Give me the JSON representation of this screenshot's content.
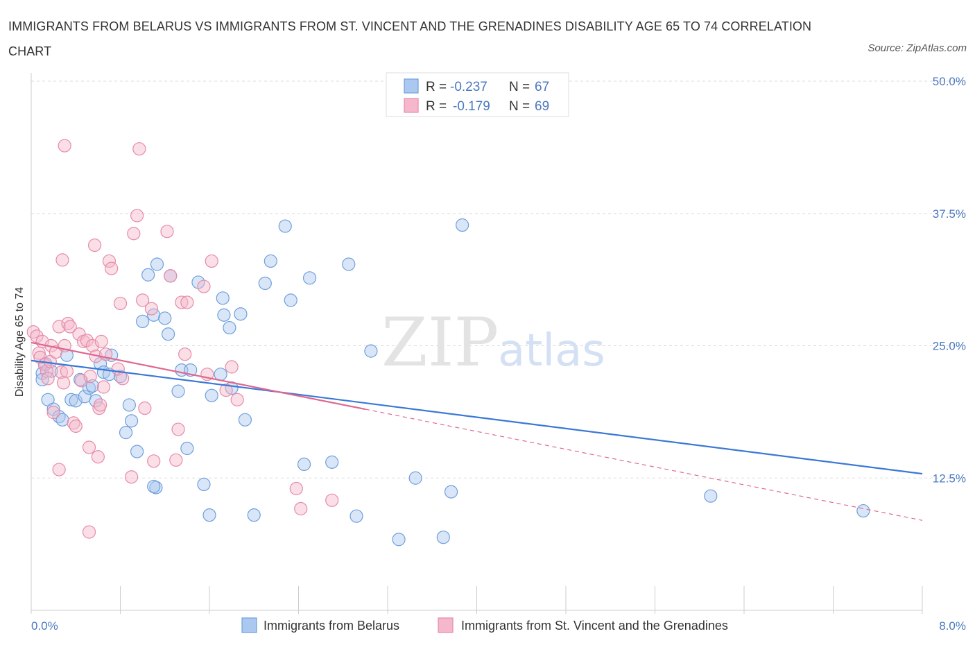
{
  "title": "IMMIGRANTS FROM BELARUS VS IMMIGRANTS FROM ST. VINCENT AND THE GRENADINES DISABILITY AGE 65 TO 74 CORRELATION CHART",
  "source": "Source: ZipAtlas.com",
  "watermark": {
    "zip": "ZIP",
    "atlas": "atlas"
  },
  "colors": {
    "blue_fill": "#aac8f0",
    "blue_stroke": "#6f9fdc",
    "blue_line": "#3a78d6",
    "pink_fill": "#f5b8ca",
    "pink_stroke": "#e88aa8",
    "pink_line": "#e0678f",
    "grid": "#dddddd",
    "axis_text": "#4a78c0"
  },
  "legend": {
    "rows": [
      {
        "r_label": "R =",
        "r_value": "-0.237",
        "n_label": "N =",
        "n_value": "67"
      },
      {
        "r_label": "R =",
        "r_value": "-0.179",
        "n_label": "N =",
        "n_value": "69"
      }
    ]
  },
  "chart_data": {
    "type": "scatter",
    "title": "IMMIGRANTS FROM BELARUS VS IMMIGRANTS FROM ST. VINCENT AND THE GRENADINES DISABILITY AGE 65 TO 74 CORRELATION CHART",
    "xlabel": "",
    "ylabel": "Disability Age 65 to 74",
    "xlim": [
      0.0,
      8.0
    ],
    "ylim": [
      0.0,
      50.0
    ],
    "x_ticks": [
      "0.0%",
      "8.0%"
    ],
    "y_ticks": [
      {
        "value": 12.5,
        "label": "12.5%"
      },
      {
        "value": 25.0,
        "label": "25.0%"
      },
      {
        "value": 37.5,
        "label": "37.5%"
      },
      {
        "value": 50.0,
        "label": "50.0%"
      }
    ],
    "grid": true,
    "legend_position": "bottom",
    "series": [
      {
        "name": "Immigrants from Belarus",
        "color": "#aac8f0",
        "trend": {
          "x": [
            0.0,
            8.0
          ],
          "y": [
            23.6,
            12.9
          ],
          "dashed_extension": false
        },
        "points": [
          [
            0.1,
            22.4
          ],
          [
            0.1,
            21.8
          ],
          [
            0.13,
            23.3
          ],
          [
            0.15,
            19.9
          ],
          [
            0.18,
            22.6
          ],
          [
            0.2,
            19.0
          ],
          [
            0.25,
            18.3
          ],
          [
            0.28,
            18.0
          ],
          [
            0.32,
            24.1
          ],
          [
            0.36,
            19.9
          ],
          [
            0.4,
            19.8
          ],
          [
            0.44,
            21.8
          ],
          [
            0.48,
            20.2
          ],
          [
            0.52,
            21.0
          ],
          [
            0.55,
            21.2
          ],
          [
            0.58,
            19.8
          ],
          [
            0.62,
            23.3
          ],
          [
            0.65,
            22.5
          ],
          [
            0.7,
            22.3
          ],
          [
            0.72,
            24.1
          ],
          [
            0.8,
            22.1
          ],
          [
            0.85,
            16.8
          ],
          [
            0.88,
            19.4
          ],
          [
            0.9,
            17.9
          ],
          [
            0.95,
            15.0
          ],
          [
            1.0,
            27.3
          ],
          [
            1.05,
            31.7
          ],
          [
            1.1,
            27.9
          ],
          [
            1.12,
            11.6
          ],
          [
            1.13,
            32.7
          ],
          [
            1.2,
            27.6
          ],
          [
            1.23,
            26.1
          ],
          [
            1.25,
            31.6
          ],
          [
            1.32,
            20.7
          ],
          [
            1.35,
            22.7
          ],
          [
            1.4,
            15.3
          ],
          [
            1.43,
            22.7
          ],
          [
            1.5,
            31.0
          ],
          [
            1.55,
            11.9
          ],
          [
            1.6,
            9.0
          ],
          [
            1.62,
            20.3
          ],
          [
            1.7,
            22.3
          ],
          [
            1.72,
            29.5
          ],
          [
            1.73,
            27.9
          ],
          [
            1.78,
            26.7
          ],
          [
            1.8,
            21.0
          ],
          [
            1.88,
            28.0
          ],
          [
            1.92,
            18.0
          ],
          [
            2.0,
            9.0
          ],
          [
            2.1,
            30.9
          ],
          [
            2.15,
            33.0
          ],
          [
            2.28,
            36.3
          ],
          [
            2.33,
            29.3
          ],
          [
            2.45,
            13.8
          ],
          [
            2.5,
            31.4
          ],
          [
            2.7,
            14.0
          ],
          [
            2.85,
            32.7
          ],
          [
            2.92,
            8.9
          ],
          [
            3.05,
            24.5
          ],
          [
            3.3,
            6.7
          ],
          [
            3.45,
            12.5
          ],
          [
            3.7,
            6.9
          ],
          [
            3.77,
            11.2
          ],
          [
            3.87,
            36.4
          ],
          [
            6.1,
            10.8
          ],
          [
            7.47,
            9.4
          ],
          [
            1.1,
            11.7
          ]
        ]
      },
      {
        "name": "Immigrants from St. Vincent and the Grenadines",
        "color": "#f5b8ca",
        "trend": {
          "x": [
            0.0,
            3.0
          ],
          "y": [
            25.3,
            19.0
          ],
          "dashed_extension": true,
          "dashed_to": [
            8.0,
            8.5
          ]
        },
        "points": [
          [
            0.02,
            26.3
          ],
          [
            0.05,
            25.9
          ],
          [
            0.07,
            24.3
          ],
          [
            0.08,
            23.9
          ],
          [
            0.1,
            25.4
          ],
          [
            0.12,
            23.2
          ],
          [
            0.14,
            22.6
          ],
          [
            0.15,
            21.9
          ],
          [
            0.17,
            23.5
          ],
          [
            0.18,
            25.0
          ],
          [
            0.2,
            18.7
          ],
          [
            0.22,
            24.4
          ],
          [
            0.25,
            26.8
          ],
          [
            0.27,
            22.5
          ],
          [
            0.29,
            21.5
          ],
          [
            0.3,
            25.0
          ],
          [
            0.32,
            22.6
          ],
          [
            0.33,
            27.1
          ],
          [
            0.35,
            26.8
          ],
          [
            0.38,
            17.7
          ],
          [
            0.4,
            17.4
          ],
          [
            0.43,
            26.1
          ],
          [
            0.45,
            21.7
          ],
          [
            0.47,
            25.4
          ],
          [
            0.5,
            25.5
          ],
          [
            0.52,
            15.4
          ],
          [
            0.53,
            22.1
          ],
          [
            0.55,
            25.0
          ],
          [
            0.57,
            34.5
          ],
          [
            0.58,
            24.0
          ],
          [
            0.6,
            14.5
          ],
          [
            0.61,
            19.1
          ],
          [
            0.62,
            19.4
          ],
          [
            0.63,
            25.4
          ],
          [
            0.65,
            21.1
          ],
          [
            0.67,
            24.2
          ],
          [
            0.7,
            33.0
          ],
          [
            0.72,
            32.3
          ],
          [
            0.78,
            22.8
          ],
          [
            0.8,
            29.0
          ],
          [
            0.82,
            21.9
          ],
          [
            0.9,
            12.6
          ],
          [
            0.92,
            35.6
          ],
          [
            0.95,
            37.3
          ],
          [
            1.0,
            29.3
          ],
          [
            1.02,
            19.1
          ],
          [
            1.08,
            28.5
          ],
          [
            1.1,
            14.1
          ],
          [
            1.22,
            35.8
          ],
          [
            1.25,
            31.6
          ],
          [
            1.3,
            14.2
          ],
          [
            1.32,
            17.1
          ],
          [
            1.35,
            29.1
          ],
          [
            1.38,
            24.2
          ],
          [
            1.4,
            29.1
          ],
          [
            1.55,
            30.6
          ],
          [
            1.58,
            22.3
          ],
          [
            1.62,
            33.0
          ],
          [
            1.75,
            20.8
          ],
          [
            1.8,
            23.0
          ],
          [
            1.85,
            19.9
          ],
          [
            2.38,
            11.5
          ],
          [
            2.42,
            9.6
          ],
          [
            2.7,
            10.4
          ],
          [
            0.3,
            43.9
          ],
          [
            0.97,
            43.6
          ],
          [
            0.28,
            33.1
          ],
          [
            0.52,
            7.4
          ],
          [
            0.25,
            13.3
          ]
        ]
      }
    ]
  }
}
